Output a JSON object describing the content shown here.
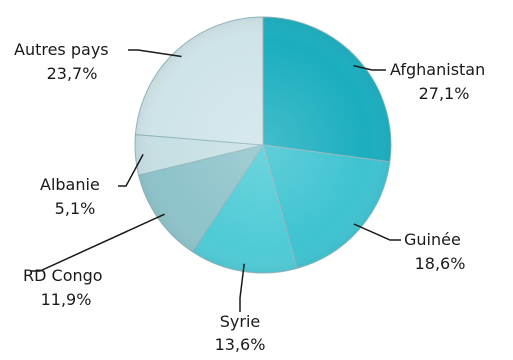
{
  "chart_data": {
    "type": "pie",
    "title": "",
    "categories": [
      "Afghanistan",
      "Guinée",
      "Syrie",
      "RD Congo",
      "Albanie",
      "Autres pays"
    ],
    "values": [
      27.1,
      18.6,
      13.6,
      11.9,
      5.1,
      23.7
    ],
    "value_labels": [
      "27,1%",
      "18,6%",
      "13,6%",
      "11,9%",
      "5,1%",
      "23,7%"
    ],
    "colors": [
      "#1aaebf",
      "#3ec3d1",
      "#4ecbd6",
      "#8dc3ca",
      "#c6dfe3",
      "#cfe4e8"
    ],
    "start": "12 o'clock",
    "direction": "clockwise",
    "legend": "none (category labels beside slices with leader lines)"
  }
}
